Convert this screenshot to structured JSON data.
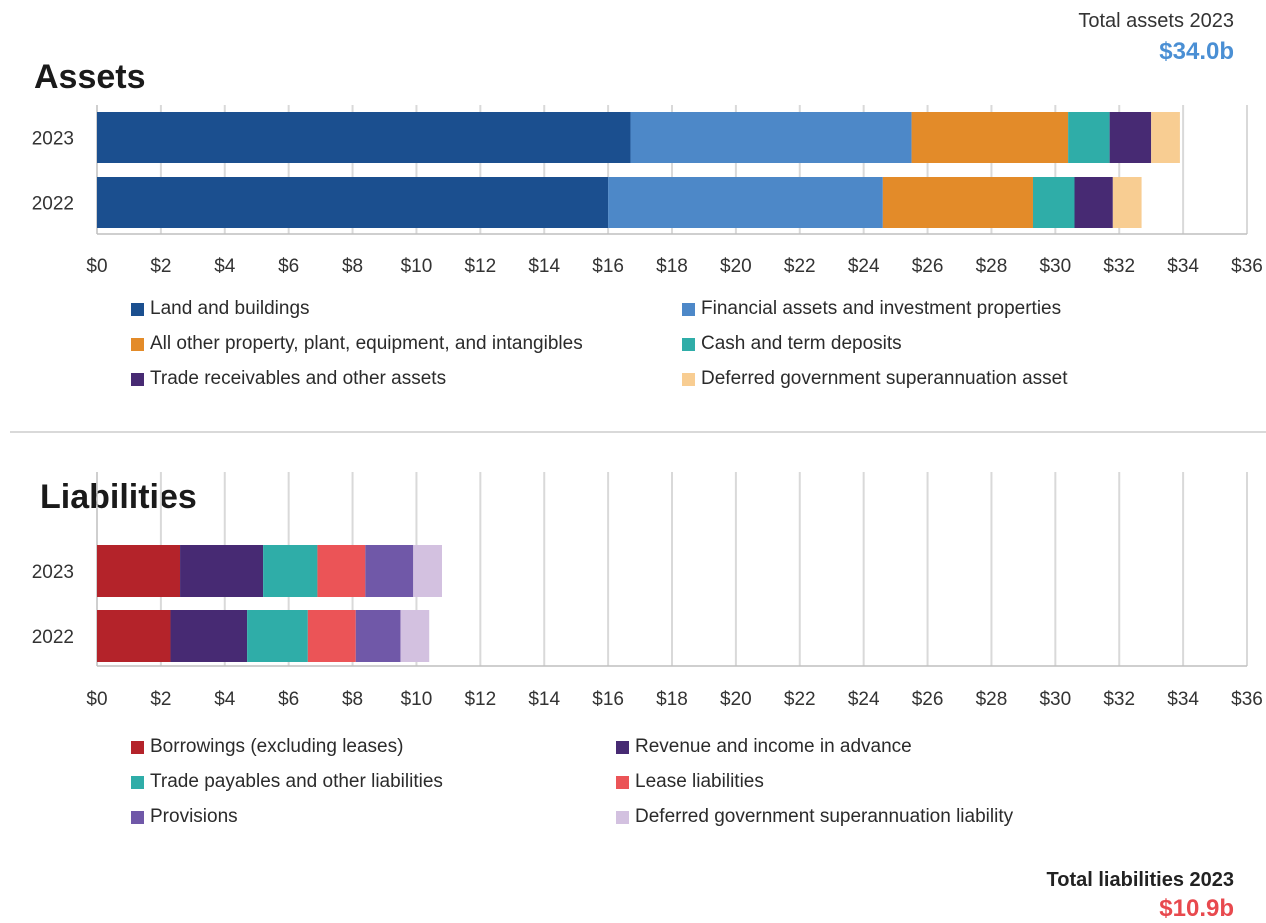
{
  "totals": {
    "assets_label": "Total assets 2023",
    "assets_value": "$34.0b",
    "assets_color": "#4a8fd4",
    "liabilities_label": "Total liabilities  2023",
    "liabilities_value": "$10.9b",
    "liabilities_color": "#e8494e"
  },
  "chart_data": [
    {
      "type": "bar",
      "orientation": "horizontal",
      "stacked": true,
      "title": "Assets",
      "categories": [
        "2023",
        "2022"
      ],
      "xlim": [
        0,
        36
      ],
      "x_ticks": [
        "$0",
        "$2",
        "$4",
        "$6",
        "$8",
        "$10",
        "$12",
        "$14",
        "$16",
        "$18",
        "$20",
        "$22",
        "$24",
        "$26",
        "$28",
        "$30",
        "$32",
        "$34",
        "$36"
      ],
      "grid": true,
      "legend_position": "bottom",
      "series": [
        {
          "name": "Land and buildings",
          "color": "#1b4f8f",
          "values": [
            16.7,
            16.0
          ]
        },
        {
          "name": "Financial assets and investment properties",
          "color": "#4d88c8",
          "values": [
            8.8,
            8.6
          ]
        },
        {
          "name": "All other property, plant, equipment, and intangibles",
          "color": "#e38b29",
          "values": [
            4.9,
            4.7
          ]
        },
        {
          "name": "Cash and term deposits",
          "color": "#2fada8",
          "values": [
            1.3,
            1.3
          ]
        },
        {
          "name": "Trade receivables and other assets",
          "color": "#472a73",
          "values": [
            1.3,
            1.2
          ]
        },
        {
          "name": "Deferred government superannuation asset",
          "color": "#f8cd92",
          "values": [
            0.9,
            0.9
          ]
        }
      ]
    },
    {
      "type": "bar",
      "orientation": "horizontal",
      "stacked": true,
      "title": "Liabilities",
      "categories": [
        "2023",
        "2022"
      ],
      "xlim": [
        0,
        36
      ],
      "x_ticks": [
        "$0",
        "$2",
        "$4",
        "$6",
        "$8",
        "$10",
        "$12",
        "$14",
        "$16",
        "$18",
        "$20",
        "$22",
        "$24",
        "$26",
        "$28",
        "$30",
        "$32",
        "$34",
        "$36"
      ],
      "grid": true,
      "legend_position": "bottom",
      "series": [
        {
          "name": "Borrowings (excluding leases)",
          "color": "#b4232a",
          "values": [
            2.6,
            2.3
          ]
        },
        {
          "name": "Revenue and income in advance",
          "color": "#472a73",
          "values": [
            2.6,
            2.4
          ]
        },
        {
          "name": "Trade payables and other liabilities",
          "color": "#2fada8",
          "values": [
            1.7,
            1.9
          ]
        },
        {
          "name": "Lease liabilities",
          "color": "#eb5457",
          "values": [
            1.5,
            1.5
          ]
        },
        {
          "name": "Provisions",
          "color": "#7058a8",
          "values": [
            1.5,
            1.4
          ]
        },
        {
          "name": "Deferred government superannuation liability",
          "color": "#d3c1e0",
          "values": [
            0.9,
            0.9
          ]
        }
      ]
    }
  ]
}
